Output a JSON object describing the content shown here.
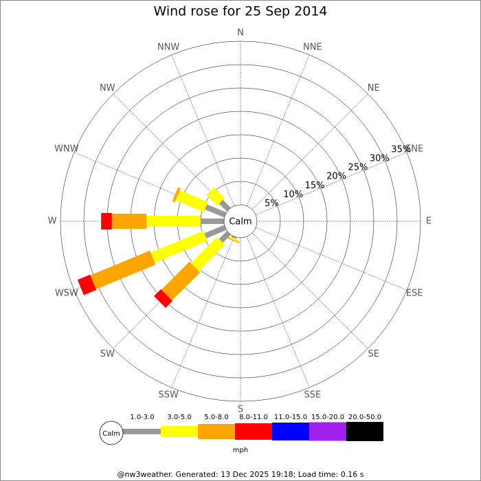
{
  "chart_data": {
    "type": "windrose",
    "title": "Wind rose for 25 Sep 2014",
    "directions": [
      "N",
      "NNE",
      "NE",
      "ENE",
      "E",
      "ESE",
      "SE",
      "SSE",
      "S",
      "SSW",
      "SW",
      "WSW",
      "W",
      "WNW",
      "NW",
      "NNW"
    ],
    "rlim": [
      0,
      35
    ],
    "rticks": [
      {
        "value": 5,
        "label": "5%"
      },
      {
        "value": 10,
        "label": "10%"
      },
      {
        "value": 15,
        "label": "15%"
      },
      {
        "value": 20,
        "label": "20%"
      },
      {
        "value": 25,
        "label": "25%"
      },
      {
        "value": 30,
        "label": "30%"
      },
      {
        "value": 35,
        "label": "35%"
      }
    ],
    "center_label": "Calm",
    "unit_label": "mph",
    "series": [
      {
        "name": "1.0-3.0",
        "color": "#999999",
        "values": [
          0,
          0,
          0,
          0,
          0,
          0,
          0,
          0,
          0,
          0.3,
          2.4,
          4.6,
          5,
          4.5,
          2.4,
          0
        ]
      },
      {
        "name": "3.0-5.0",
        "color": "#ffff00",
        "values": [
          0,
          0,
          0,
          0,
          0,
          0,
          0,
          0,
          0,
          0.4,
          7.9,
          12.2,
          11.6,
          6.5,
          3.2,
          0
        ]
      },
      {
        "name": "5.0-8.0",
        "color": "#ffa500",
        "values": [
          0,
          0,
          0,
          0,
          0,
          0,
          0,
          0,
          0,
          0.2,
          8.5,
          13.8,
          7.4,
          0.6,
          0,
          0
        ]
      },
      {
        "name": "8.0-11.0",
        "color": "#ff0000",
        "values": [
          0,
          0,
          0,
          0,
          0,
          0,
          0,
          0,
          0,
          0,
          2.1,
          2.9,
          2.3,
          0,
          0,
          0
        ]
      },
      {
        "name": "11.0-15.0",
        "color": "#0000ff",
        "values": [
          0,
          0,
          0,
          0,
          0,
          0,
          0,
          0,
          0,
          0,
          0,
          0,
          0,
          0,
          0,
          0
        ]
      },
      {
        "name": "15.0-20.0",
        "color": "#a020f0",
        "values": [
          0,
          0,
          0,
          0,
          0,
          0,
          0,
          0,
          0,
          0,
          0,
          0,
          0,
          0,
          0,
          0
        ]
      },
      {
        "name": "20.0-50.0",
        "color": "#000000",
        "values": [
          0,
          0,
          0,
          0,
          0,
          0,
          0,
          0,
          0,
          0,
          0,
          0,
          0,
          0,
          0,
          0
        ]
      }
    ],
    "footer": "@nw3weather. Generated: 13 Dec 2025 19:18; Load time: 0.16 s"
  }
}
